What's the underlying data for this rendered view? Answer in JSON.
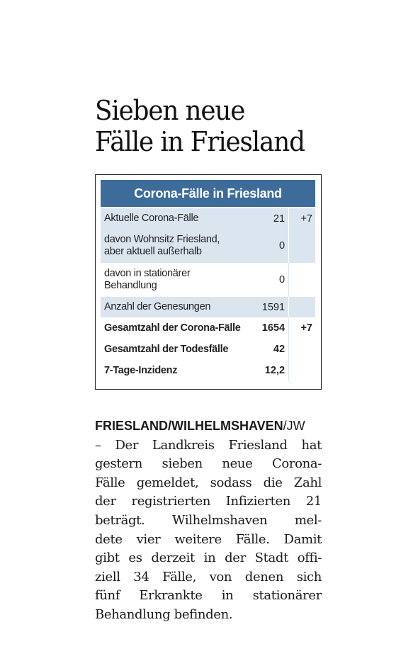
{
  "headline": {
    "line1": "Sieben neue",
    "line2": "Fälle in Friesland"
  },
  "factbox": {
    "title": "Corona-Fälle in Friesland",
    "rows": [
      {
        "label1": "Aktuelle Corona-Fälle",
        "label2": "",
        "value": "21",
        "change": "+7"
      },
      {
        "label1": "davon Wohnsitz Friesland,",
        "label2": "aber aktuell außerhalb",
        "value": "0",
        "change": ""
      },
      {
        "label1": "davon in stationärer",
        "label2": "Behandlung",
        "value": "0",
        "change": ""
      },
      {
        "label1": "Anzahl der Genesungen",
        "label2": "",
        "value": "1591",
        "change": ""
      },
      {
        "label1": "Gesamtzahl der Corona-Fälle",
        "label2": "",
        "value": "1654",
        "change": "+7"
      },
      {
        "label1": "Gesamtzahl der Todesfälle",
        "label2": "",
        "value": "42",
        "change": ""
      },
      {
        "label1": "7-Tage-Inzidenz",
        "label2": "",
        "value": "12,2",
        "change": ""
      }
    ]
  },
  "article": {
    "dateline": "FRIESLAND/WILHELMSHAVEN",
    "author": "/JW",
    "lines": [
      "– Der Landkreis Friesland hat",
      "gestern sieben neue Corona-",
      "Fälle gemeldet, sodass die Zahl",
      "der registrierten Infizierten 21",
      "beträgt. Wilhelmshaven mel-",
      "dete vier weitere Fälle. Damit",
      "gibt es derzeit in der Stadt offi-",
      "ziell 34 Fälle, von denen sich",
      "fünf Erkrankte in stationärer",
      "Behandlung befinden."
    ]
  }
}
